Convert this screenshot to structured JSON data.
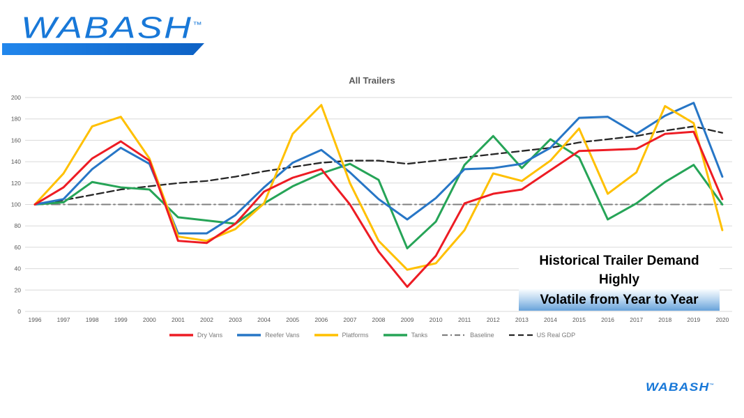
{
  "header": {
    "logo_text": "WABASH",
    "trademark": "™",
    "brand_blue": "#1878d8"
  },
  "footer": {
    "logo_text": "WABASH",
    "trademark": "™"
  },
  "callout": {
    "line1": "Historical Trailer Demand Highly",
    "line2": "Volatile from Year to Year"
  },
  "chart_data": {
    "type": "line",
    "title": "All Trailers",
    "x": [
      1996,
      1997,
      1998,
      1999,
      2000,
      2001,
      2002,
      2003,
      2004,
      2005,
      2006,
      2007,
      2008,
      2009,
      2010,
      2011,
      2012,
      2013,
      2014,
      2015,
      2016,
      2017,
      2018,
      2019,
      2020
    ],
    "ylim": [
      0,
      200
    ],
    "yticks": [
      0,
      20,
      40,
      60,
      80,
      100,
      120,
      140,
      160,
      180,
      200
    ],
    "grid": "horizontal",
    "legend_position": "bottom",
    "gridline_color": "#d9d9d9",
    "tick_color": "#595959",
    "legend_text_color": "#7a7a7a",
    "series": [
      {
        "name": "Dry Vans",
        "color": "#ed1c24",
        "style": "solid",
        "values": [
          100,
          116,
          143,
          159,
          141,
          66,
          64,
          82,
          112,
          125,
          133,
          100,
          56,
          23,
          52,
          101,
          110,
          114,
          132,
          150,
          151,
          152,
          166,
          168,
          105
        ]
      },
      {
        "name": "Reefer Vans",
        "color": "#2776c6",
        "style": "solid",
        "values": [
          100,
          105,
          133,
          153,
          138,
          73,
          73,
          90,
          116,
          139,
          151,
          130,
          105,
          86,
          106,
          133,
          134,
          138,
          153,
          181,
          182,
          166,
          183,
          195,
          126
        ]
      },
      {
        "name": "Platforms",
        "color": "#ffc000",
        "style": "solid",
        "values": [
          100,
          129,
          173,
          182,
          143,
          70,
          66,
          77,
          101,
          166,
          193,
          120,
          66,
          39,
          45,
          76,
          129,
          122,
          141,
          171,
          110,
          130,
          192,
          176,
          76
        ]
      },
      {
        "name": "Tanks",
        "color": "#26a457",
        "style": "solid",
        "values": [
          100,
          102,
          121,
          116,
          114,
          88,
          85,
          82,
          101,
          117,
          129,
          138,
          123,
          59,
          84,
          137,
          164,
          134,
          161,
          144,
          86,
          101,
          121,
          137,
          100
        ]
      },
      {
        "name": "Baseline",
        "color": "#808080",
        "style": "dashdot",
        "values": [
          100,
          100,
          100,
          100,
          100,
          100,
          100,
          100,
          100,
          100,
          100,
          100,
          100,
          100,
          100,
          100,
          100,
          100,
          100,
          100,
          100,
          100,
          100,
          100,
          100
        ]
      },
      {
        "name": "US Real GDP",
        "color": "#262626",
        "style": "dash",
        "values": [
          100,
          104,
          109,
          114,
          117,
          120,
          122,
          126,
          131,
          135,
          139,
          141,
          141,
          138,
          141,
          144,
          147,
          150,
          153,
          158,
          161,
          164,
          169,
          173,
          167
        ]
      }
    ]
  }
}
